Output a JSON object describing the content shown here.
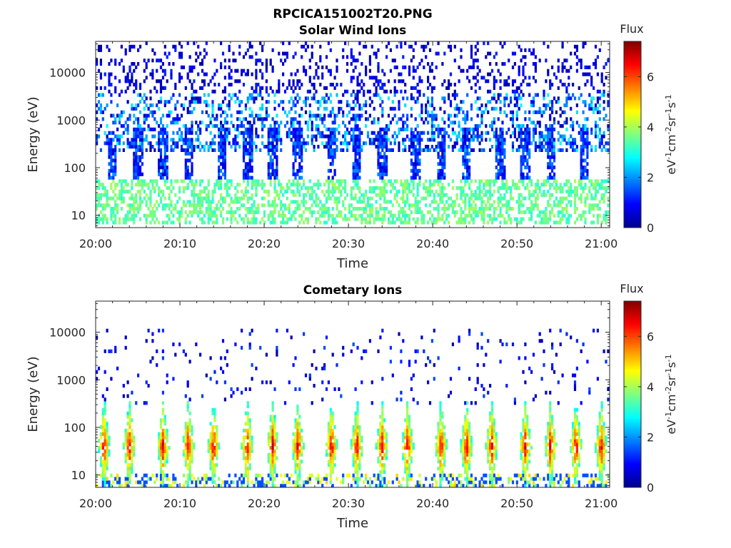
{
  "figure": {
    "title": "RPCICA151002T20.PNG"
  },
  "chart_data": [
    {
      "type": "heatmap",
      "title": "Solar Wind Ions",
      "xlabel": "Time",
      "ylabel": "Energy (eV)",
      "x_ticks": [
        "20:00",
        "20:10",
        "20:20",
        "20:30",
        "20:40",
        "20:50",
        "21:00"
      ],
      "x_range": [
        "20:00",
        "21:01"
      ],
      "y_scale": "log",
      "y_ticks": [
        "10",
        "100",
        "1000",
        "10000"
      ],
      "y_range": [
        5.5,
        45000
      ],
      "colorbar": {
        "title": "Flux",
        "label": "eV-1cm-2sr-1s-1",
        "colormap": "jet",
        "ticks": [
          "0",
          "2",
          "4",
          "6"
        ],
        "range": [
          0,
          7.4
        ]
      },
      "series": [
        {
          "component": "main",
          "energy_range": [
            6,
            60
          ],
          "flux_range": [
            3,
            4
          ],
          "pattern": "near-continuous"
        },
        {
          "component": "bursts",
          "energy_peak": 200,
          "flux_range": [
            0.5,
            2
          ],
          "period_minutes": 3.3,
          "burst_times": [
            "20:02",
            "20:05",
            "20:08",
            "20:11",
            "20:15",
            "20:18",
            "20:21",
            "20:24",
            "20:28",
            "20:31",
            "20:34",
            "20:38",
            "20:41",
            "20:44",
            "20:48",
            "20:51",
            "20:54",
            "20:58"
          ]
        },
        {
          "component": "background",
          "energy_range": [
            200,
            45000
          ],
          "flux_range": [
            0.2,
            2.8
          ],
          "pattern": "sparse scatter"
        }
      ]
    },
    {
      "type": "heatmap",
      "title": "Cometary Ions",
      "xlabel": "Time",
      "ylabel": "Energy (eV)",
      "x_ticks": [
        "20:00",
        "20:10",
        "20:20",
        "20:30",
        "20:40",
        "20:50",
        "21:00"
      ],
      "x_range": [
        "20:00",
        "21:01"
      ],
      "y_scale": "log",
      "y_ticks": [
        "10",
        "100",
        "1000",
        "10000"
      ],
      "y_range": [
        5.5,
        45000
      ],
      "colorbar": {
        "title": "Flux",
        "label": "eV-1cm-2sr-1s-1",
        "colormap": "jet",
        "ticks": [
          "0",
          "2",
          "4",
          "6"
        ],
        "range": [
          0,
          7.4
        ]
      },
      "series": [
        {
          "component": "bursts",
          "energy_peak": 40,
          "energy_range": [
            6,
            400
          ],
          "peak_flux": 6.2,
          "period_minutes": 3.3,
          "burst_times": [
            "20:01",
            "20:04",
            "20:08",
            "20:11",
            "20:14",
            "20:18",
            "20:21",
            "20:24",
            "20:28",
            "20:31",
            "20:34",
            "20:37",
            "20:41",
            "20:44",
            "20:47",
            "20:51",
            "20:54",
            "20:57",
            "21:00"
          ]
        },
        {
          "component": "background",
          "energy_range": [
            300,
            11000
          ],
          "flux_range": [
            0.3,
            1.5
          ],
          "pattern": "sparse scatter"
        }
      ]
    }
  ]
}
